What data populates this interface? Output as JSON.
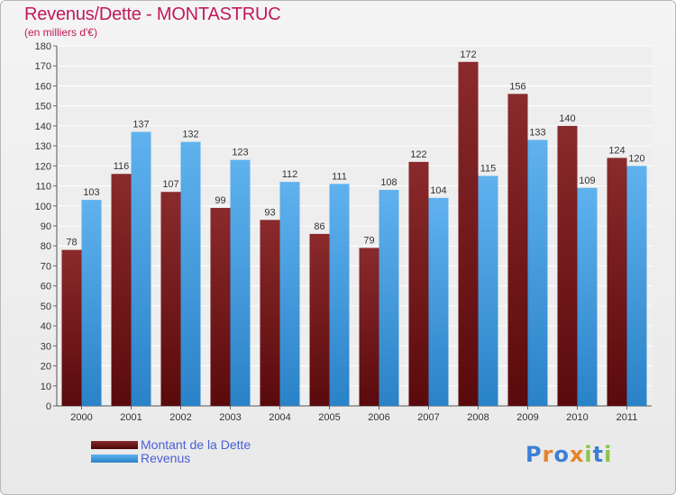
{
  "title": "Revenus/Dette - MONTASTRUC",
  "subtitle": "(en milliers d'€)",
  "logo_text": "Proxiti",
  "colors": {
    "title": "#c2185b",
    "dette": "#7a1c1e",
    "revenus": "#3d9be0",
    "legend_text": "#4a5fd6"
  },
  "chart_data": {
    "type": "bar",
    "title": "Revenus/Dette - MONTASTRUC",
    "subtitle": "(en milliers d'€)",
    "categories": [
      "2000",
      "2001",
      "2002",
      "2003",
      "2004",
      "2005",
      "2006",
      "2007",
      "2008",
      "2009",
      "2010",
      "2011"
    ],
    "series": [
      {
        "name": "Montant de la Dette",
        "color": "#7a1c1e",
        "values": [
          78,
          116,
          107,
          99,
          93,
          86,
          79,
          122,
          172,
          156,
          140,
          124
        ]
      },
      {
        "name": "Revenus",
        "color": "#3d9be0",
        "values": [
          103,
          137,
          132,
          123,
          112,
          111,
          108,
          104,
          115,
          133,
          109,
          120
        ]
      }
    ],
    "ylim": [
      0,
      180
    ],
    "yticks": [
      0,
      10,
      20,
      30,
      40,
      50,
      60,
      70,
      80,
      90,
      100,
      110,
      120,
      130,
      140,
      150,
      160,
      170,
      180
    ],
    "grid": true,
    "legend": "bottom-left",
    "data_labels": true
  }
}
